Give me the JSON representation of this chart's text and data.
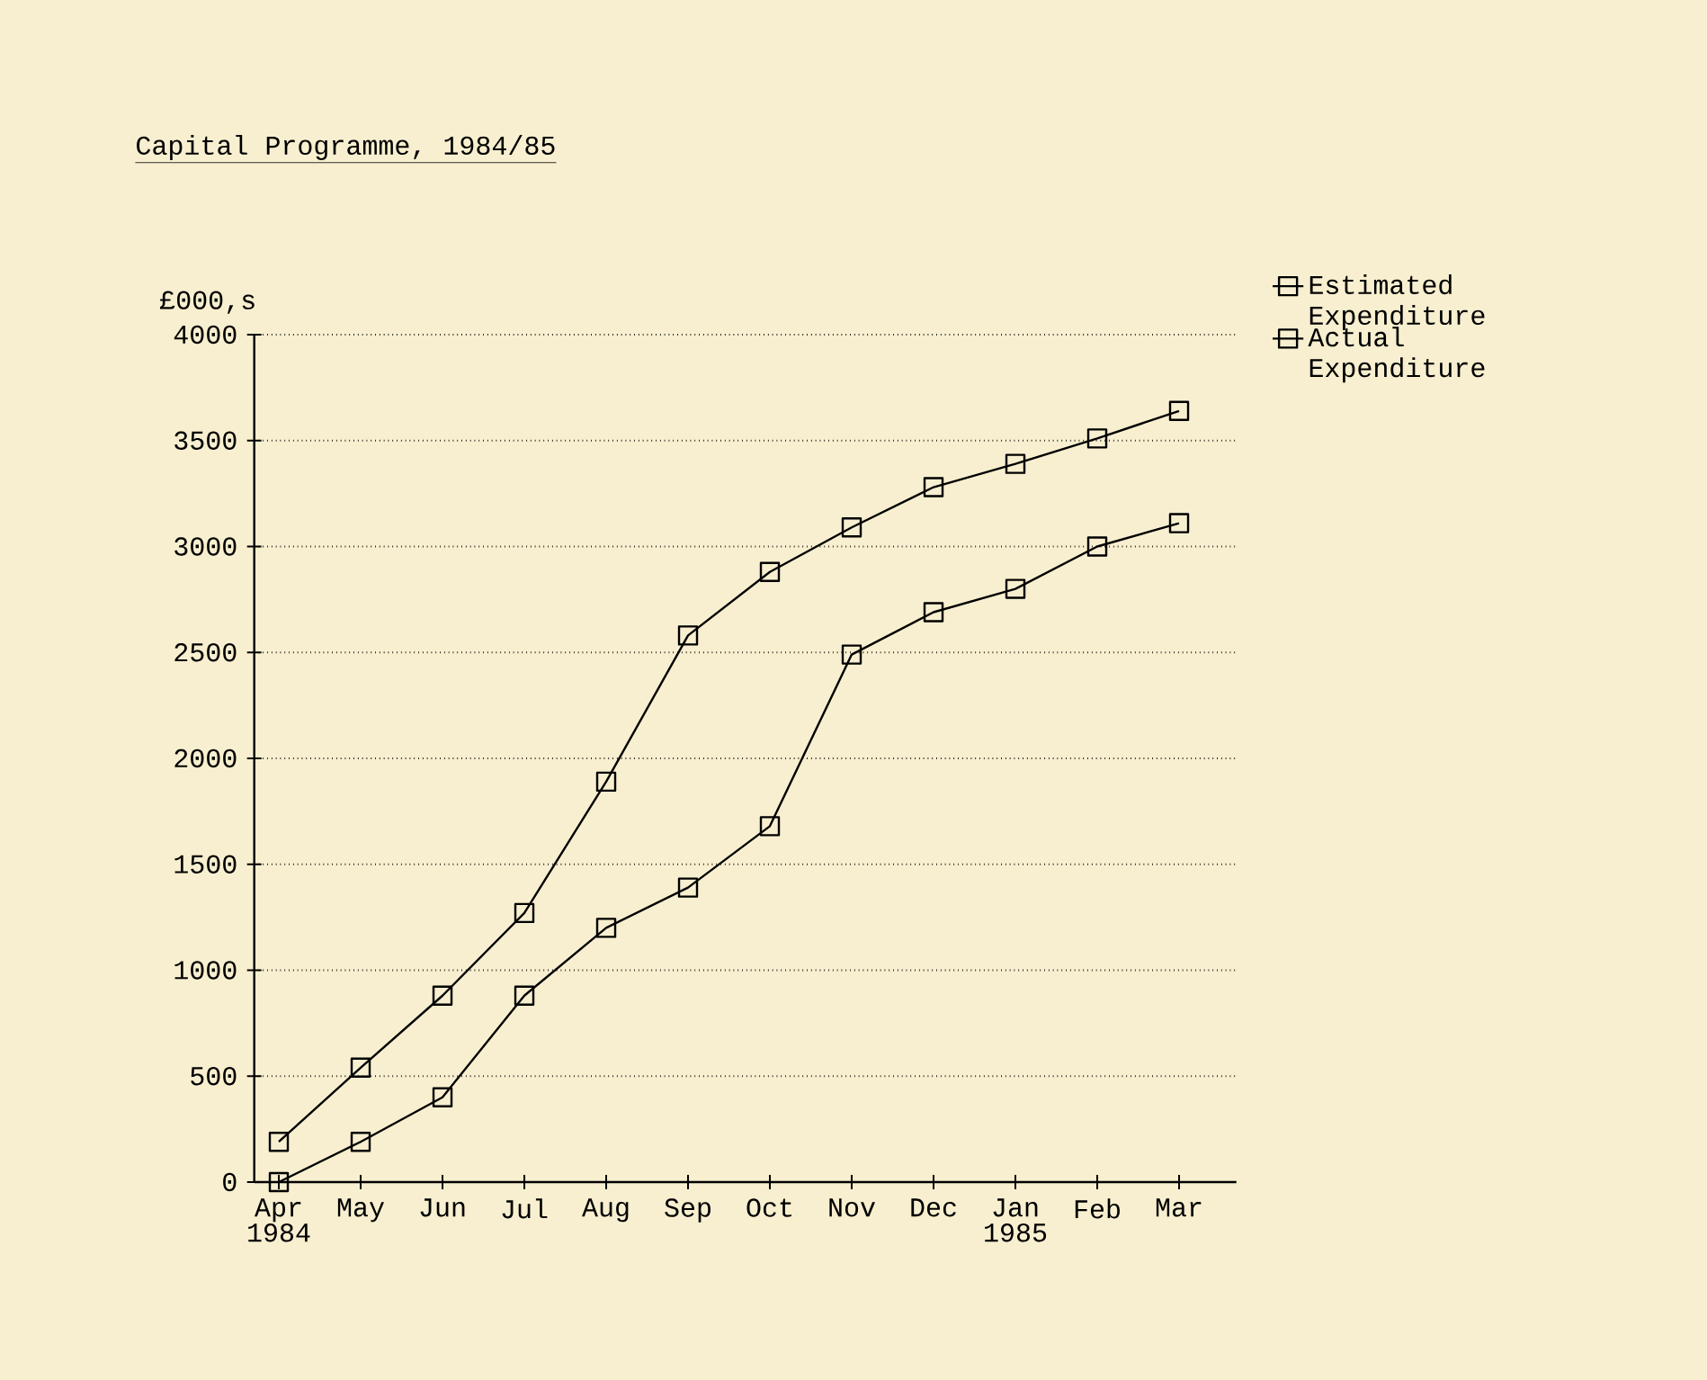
{
  "chart_data": {
    "type": "line",
    "title": "Capital Programme, 1984/85",
    "ylabel": "£000,s",
    "categories": [
      "Apr 1984",
      "May",
      "Jun",
      "Jul",
      "Aug",
      "Sep",
      "Oct",
      "Nov",
      "Dec",
      "Jan 1985",
      "Feb",
      "Mar"
    ],
    "series": [
      {
        "name": "Estimated Expenditure",
        "color": "#000000",
        "values": [
          190,
          540,
          880,
          1270,
          1890,
          2580,
          2880,
          3090,
          3280,
          3390,
          3510,
          3640
        ]
      },
      {
        "name": "Actual Expenditure",
        "color": "#000000",
        "values": [
          0,
          190,
          400,
          880,
          1200,
          1390,
          1680,
          2490,
          2690,
          2800,
          3000,
          3110
        ]
      }
    ],
    "ylim": [
      0,
      4000
    ],
    "yticks": [
      0,
      500,
      1000,
      1500,
      2000,
      2500,
      3000,
      3500,
      4000
    ],
    "grid": "y",
    "legend": "right",
    "marker": "square",
    "line_style": "solid"
  }
}
